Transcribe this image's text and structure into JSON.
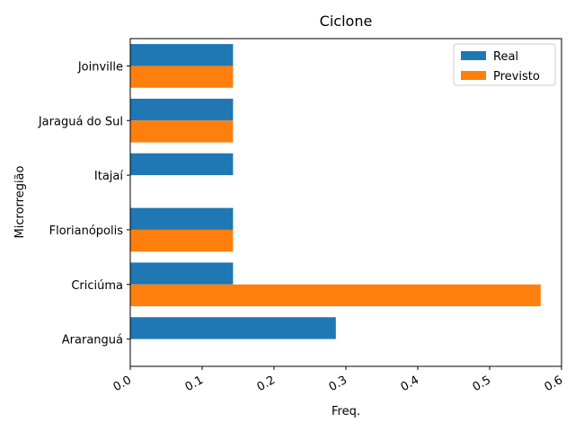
{
  "chart_data": {
    "type": "bar",
    "orientation": "horizontal",
    "title": "Ciclone",
    "xlabel": "Freq.",
    "ylabel": "Microrregião",
    "categories": [
      "Araranguá",
      "Criciúma",
      "Florianópolis",
      "Itajaí",
      "Jaraguá do Sul",
      "Joinville"
    ],
    "series": [
      {
        "name": "Real",
        "color": "#1f77b4",
        "values": [
          0.286,
          0.143,
          0.143,
          0.143,
          0.143,
          0.143
        ]
      },
      {
        "name": "Previsto",
        "color": "#ff7f0e",
        "values": [
          0.0,
          0.571,
          0.143,
          0.0,
          0.143,
          0.143
        ]
      }
    ],
    "xlim": [
      0.0,
      0.6
    ],
    "xticks": [
      "0.0",
      "0.1",
      "0.2",
      "0.3",
      "0.4",
      "0.5",
      "0.6"
    ],
    "grid": false,
    "legend_position": "top-right"
  }
}
